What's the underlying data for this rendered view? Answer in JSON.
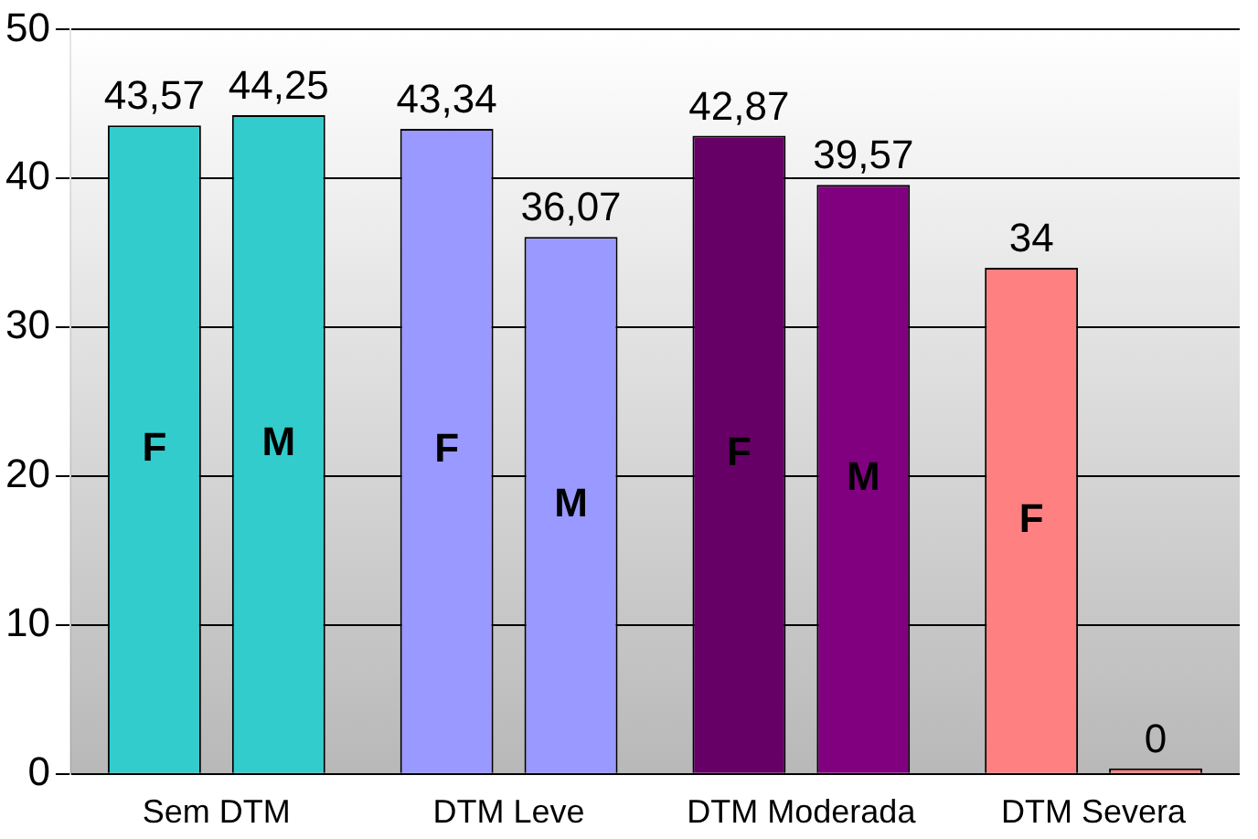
{
  "chart_data": {
    "type": "bar",
    "categories": [
      "Sem DTM",
      "DTM Leve",
      "DTM Moderada",
      "DTM Severa"
    ],
    "series": [
      {
        "name": "F",
        "colors": [
          "#33cccc",
          "#9999ff",
          "#660066",
          "#ff8080"
        ],
        "values": [
          43.57,
          43.34,
          42.87,
          34
        ],
        "value_labels": [
          "43,57",
          "43,34",
          "42,87",
          "34"
        ]
      },
      {
        "name": "M",
        "colors": [
          "#33cccc",
          "#9999ff",
          "#800080",
          "#ff8080"
        ],
        "values": [
          44.25,
          36.07,
          39.57,
          0
        ],
        "value_labels": [
          "44,25",
          "36,07",
          "39,57",
          "0"
        ]
      }
    ],
    "ylim": [
      0,
      50
    ],
    "yticks": [
      0,
      10,
      20,
      30,
      40,
      50
    ],
    "grid": "y",
    "legend": false
  }
}
